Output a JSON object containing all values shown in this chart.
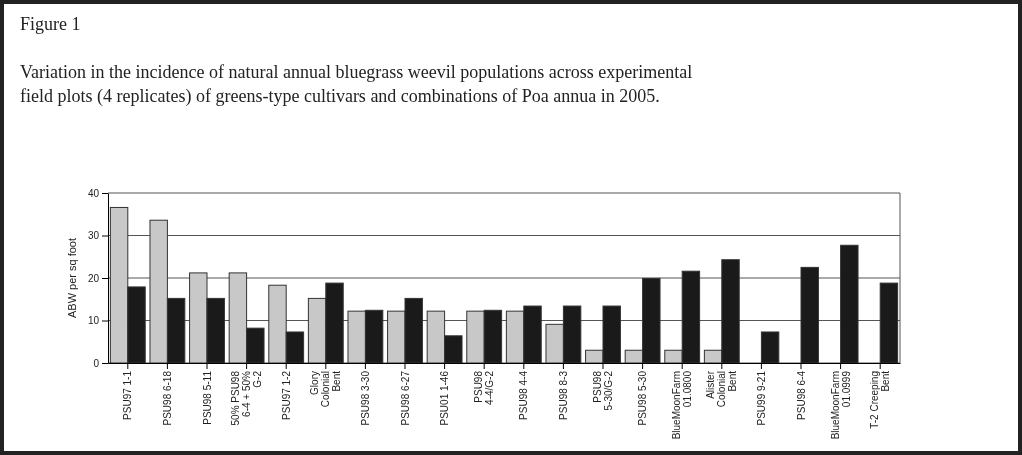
{
  "chart_data": {
    "type": "bar",
    "title": "Figure 1",
    "subtitle": "Variation in the incidence of natural annual bluegrass weevil populations across experimental field plots (4 replicates) of greens-type cultivars and combinations of Poa annua in 2005.",
    "ylabel": "ABW per sq foot",
    "categories": [
      "PSU97 1-1",
      "PSU98 6-18",
      "PSU98 5-11",
      "50% PSU98 6-4 + 50% G-2",
      "PSU97 1-2",
      "Glory Colonial Bent",
      "PSU98 3-30",
      "PSU98 6-27",
      "PSU01 1-46",
      "PSU98 4-4/G-2",
      "PSU98 4-4",
      "PSU98 8-3",
      "PSU98 5-30/G-2",
      "PSU98 5-30",
      "BlueMoonFarm 01.0800",
      "Alister Colonial Bent",
      "PSU99 9-21",
      "PSU98 6-4",
      "BlueMoonFarm 01.0999",
      "T-2 Creeping Bent"
    ],
    "series": [
      {
        "color": "#c8c8c8",
        "values": [
          36.6,
          33.6,
          21.2,
          21.2,
          18.3,
          15.2,
          12.2,
          12.2,
          12.2,
          12.2,
          12.2,
          9.1,
          3,
          3,
          3,
          3,
          0,
          0,
          0,
          0
        ]
      },
      {
        "color": "#1a1a1a",
        "values": [
          17.9,
          15.2,
          15.2,
          8.2,
          7.3,
          18.8,
          12.4,
          15.2,
          6.4,
          12.4,
          13.4,
          13.4,
          13.4,
          19.9,
          21.6,
          24.3,
          7.3,
          22.5,
          27.7,
          18.8
        ]
      }
    ],
    "ylim": [
      0,
      40
    ],
    "yticks": [
      0,
      10,
      20,
      30,
      40
    ],
    "grid": "y"
  }
}
